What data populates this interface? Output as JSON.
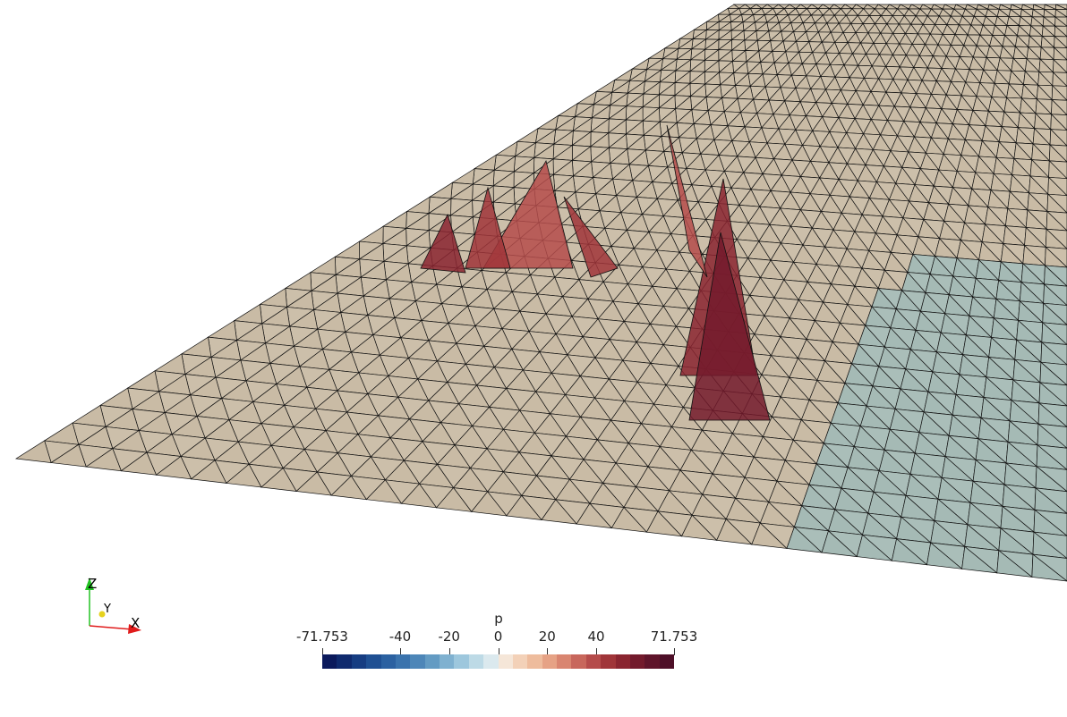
{
  "viewport": {
    "background": "#ffffff",
    "surface_base_color": "#c9bba5",
    "surface_cool_color": "#a5bab5",
    "edge_color": "#111111"
  },
  "orientation_axes": {
    "z_label": "Z",
    "y_label": "Y",
    "x_label": "X",
    "z_color": "#22c322",
    "y_color": "#e6d21e",
    "x_color": "#e01b1b"
  },
  "scalar_bar": {
    "title": "p",
    "min_label": "-71.753",
    "max_label": "71.753",
    "ticks": [
      "-71.753",
      "-40",
      "-20",
      "0",
      "20",
      "40",
      "71.753"
    ],
    "tick_values": [
      -71.753,
      -40,
      -20,
      0,
      20,
      40,
      71.753
    ],
    "range": [
      -71.753,
      71.753
    ],
    "colors": [
      "#0b1a5c",
      "#0f2a6e",
      "#163d82",
      "#1f5093",
      "#2b61a1",
      "#3a73ad",
      "#4d86b8",
      "#639bc3",
      "#7fb1d0",
      "#9dc7dd",
      "#bddae6",
      "#dbe9ee",
      "#f5e6d8",
      "#f3d1b8",
      "#eebc9d",
      "#e6a285",
      "#d98570",
      "#c8675c",
      "#b54c4b",
      "#a03539",
      "#8a2530",
      "#731a2c",
      "#5f142a",
      "#4e0f28"
    ]
  }
}
